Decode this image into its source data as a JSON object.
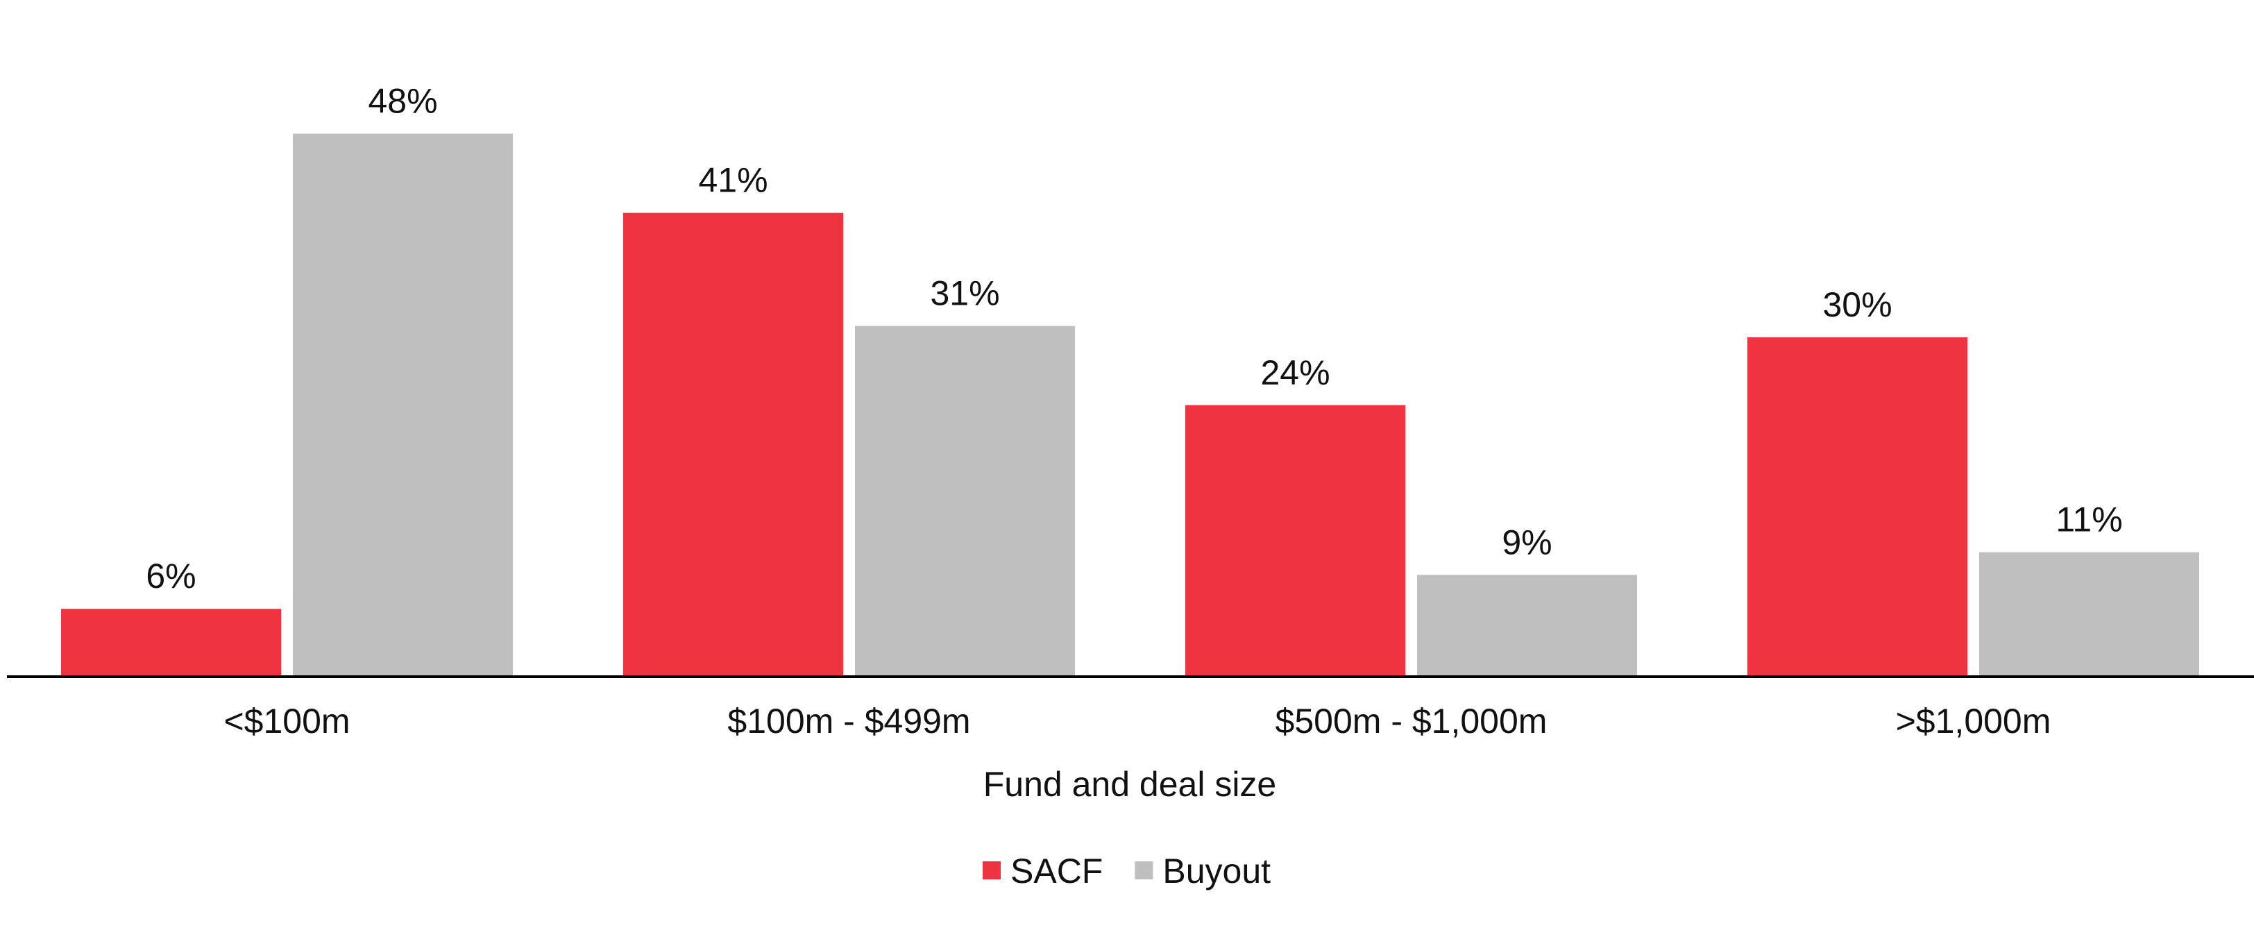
{
  "chart_data": {
    "type": "bar",
    "title": "",
    "xlabel": "Fund and deal size",
    "ylabel": "",
    "categories": [
      "<$100m",
      "$100m - $499m",
      "$500m - $1,000m",
      ">$1,000m"
    ],
    "series": [
      {
        "name": "SACF",
        "color": "#ef3340",
        "values": [
          6,
          41,
          24,
          30
        ],
        "labels": [
          "6%",
          "41%",
          "24%",
          "30%"
        ]
      },
      {
        "name": "Buyout",
        "color": "#bfbfbf",
        "values": [
          48,
          31,
          9,
          11
        ],
        "labels": [
          "48%",
          "31%",
          "9%",
          "11%"
        ]
      }
    ],
    "ylim": [
      0,
      50
    ],
    "grid": false,
    "legend_position": "bottom-center",
    "axis_color": "#000000"
  }
}
